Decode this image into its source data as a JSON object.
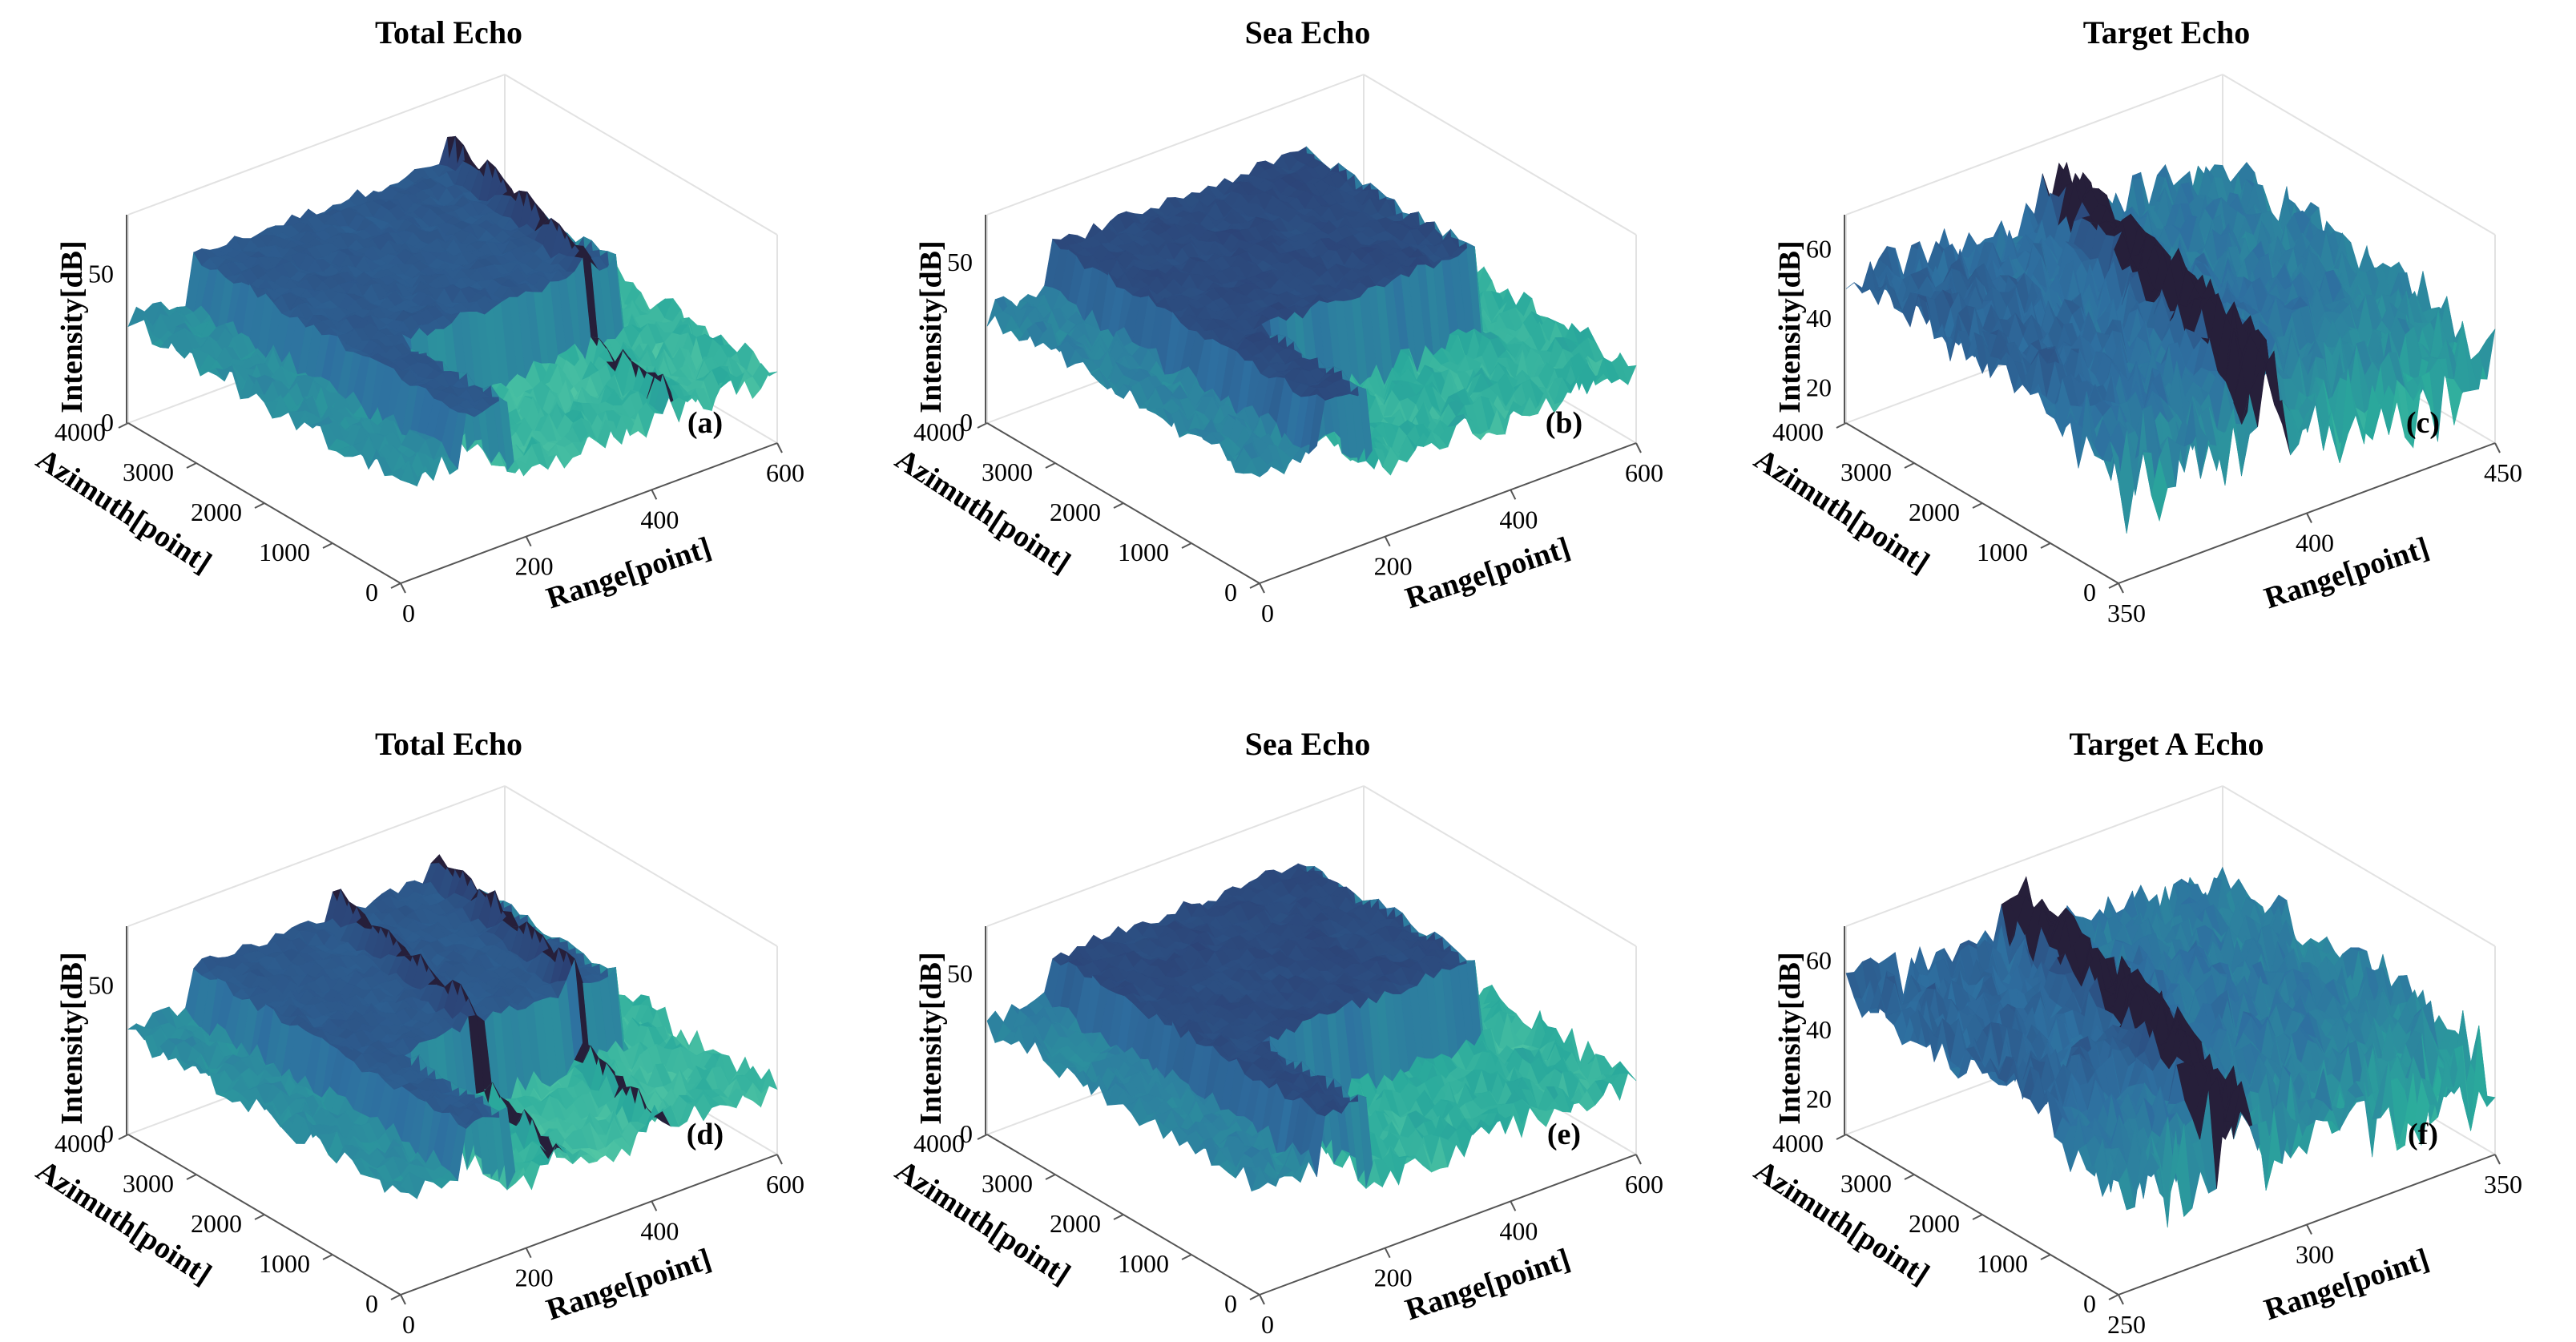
{
  "colors": {
    "surface_low": "#7ee6ae",
    "surface_mid": "#2aaa9c",
    "surface_high": "#2e6fa0",
    "surface_peak": "#2b3a6e",
    "target_dark": "#261f3a",
    "axis": "#555555",
    "grid": "#e2e2e2"
  },
  "chart_data": [
    {
      "type": "surface",
      "panel_label": "(a)",
      "title": "Total Echo",
      "xlabel": "Range[point]",
      "ylabel": "Azimuth[point]",
      "zlabel": "Intensity[dB]",
      "xlim": [
        0,
        600
      ],
      "ylim": [
        0,
        4000
      ],
      "zlim": [
        0,
        70
      ],
      "xticks": [
        0,
        200,
        400,
        600
      ],
      "yticks": [
        0,
        1000,
        2000,
        3000,
        4000
      ],
      "zticks": [
        0,
        50
      ],
      "sea_ridge_range": [
        100,
        520
      ],
      "sea_ridge_level": 48,
      "base_level": 18,
      "targets": [
        {
          "range": 480,
          "depth": 10
        }
      ]
    },
    {
      "type": "surface",
      "panel_label": "(b)",
      "title": "Sea Echo",
      "xlabel": "Range[point]",
      "ylabel": "Azimuth[point]",
      "zlabel": "Intensity[dB]",
      "xlim": [
        0,
        600
      ],
      "ylim": [
        0,
        4000
      ],
      "zlim": [
        0,
        65
      ],
      "xticks": [
        0,
        200,
        400,
        600
      ],
      "yticks": [
        0,
        1000,
        2000,
        3000,
        4000
      ],
      "zticks": [
        0,
        50
      ],
      "sea_ridge_range": [
        100,
        520
      ],
      "sea_ridge_level": 48,
      "base_level": 18,
      "targets": []
    },
    {
      "type": "surface",
      "panel_label": "(c)",
      "title": "Target Echo",
      "xlabel": "Range[point]",
      "ylabel": "Azimuth[point]",
      "zlabel": "Intensity[dB]",
      "xlim": [
        350,
        450
      ],
      "ylim": [
        0,
        4000
      ],
      "zlim": [
        10,
        70
      ],
      "xticks": [
        350,
        400,
        450
      ],
      "yticks": [
        0,
        1000,
        2000,
        3000,
        4000
      ],
      "zticks": [
        20,
        40,
        60
      ],
      "sea_ridge_range": [
        350,
        450
      ],
      "sea_ridge_level": 52,
      "base_level": 28,
      "targets": [
        {
          "range": 400,
          "depth": 14
        }
      ]
    },
    {
      "type": "surface",
      "panel_label": "(d)",
      "title": "Total Echo",
      "xlabel": "Range[point]",
      "ylabel": "Azimuth[point]",
      "zlabel": "Intensity[dB]",
      "xlim": [
        0,
        600
      ],
      "ylim": [
        0,
        4000
      ],
      "zlim": [
        0,
        70
      ],
      "xticks": [
        0,
        200,
        400,
        600
      ],
      "yticks": [
        0,
        1000,
        2000,
        3000,
        4000
      ],
      "zticks": [
        0,
        50
      ],
      "sea_ridge_range": [
        100,
        520
      ],
      "sea_ridge_level": 48,
      "base_level": 18,
      "targets": [
        {
          "range": 300,
          "depth": 10
        },
        {
          "range": 460,
          "depth": 10
        }
      ]
    },
    {
      "type": "surface",
      "panel_label": "(e)",
      "title": "Sea Echo",
      "xlabel": "Range[point]",
      "ylabel": "Azimuth[point]",
      "zlabel": "Intensity[dB]",
      "xlim": [
        0,
        600
      ],
      "ylim": [
        0,
        4000
      ],
      "zlim": [
        0,
        65
      ],
      "xticks": [
        0,
        200,
        400,
        600
      ],
      "yticks": [
        0,
        1000,
        2000,
        3000,
        4000
      ],
      "zticks": [
        0,
        50
      ],
      "sea_ridge_range": [
        100,
        520
      ],
      "sea_ridge_level": 48,
      "base_level": 18,
      "targets": []
    },
    {
      "type": "surface",
      "panel_label": "(f)",
      "title": "Target A Echo",
      "xlabel": "Range[point]",
      "ylabel": "Azimuth[point]",
      "zlabel": "Intensity[dB]",
      "xlim": [
        250,
        350
      ],
      "ylim": [
        0,
        4000
      ],
      "zlim": [
        10,
        70
      ],
      "xticks": [
        250,
        300,
        350
      ],
      "yticks": [
        0,
        1000,
        2000,
        3000,
        4000
      ],
      "zticks": [
        20,
        40,
        60
      ],
      "sea_ridge_range": [
        250,
        350
      ],
      "sea_ridge_level": 52,
      "base_level": 28,
      "targets": [
        {
          "range": 290,
          "depth": 14
        }
      ]
    }
  ]
}
